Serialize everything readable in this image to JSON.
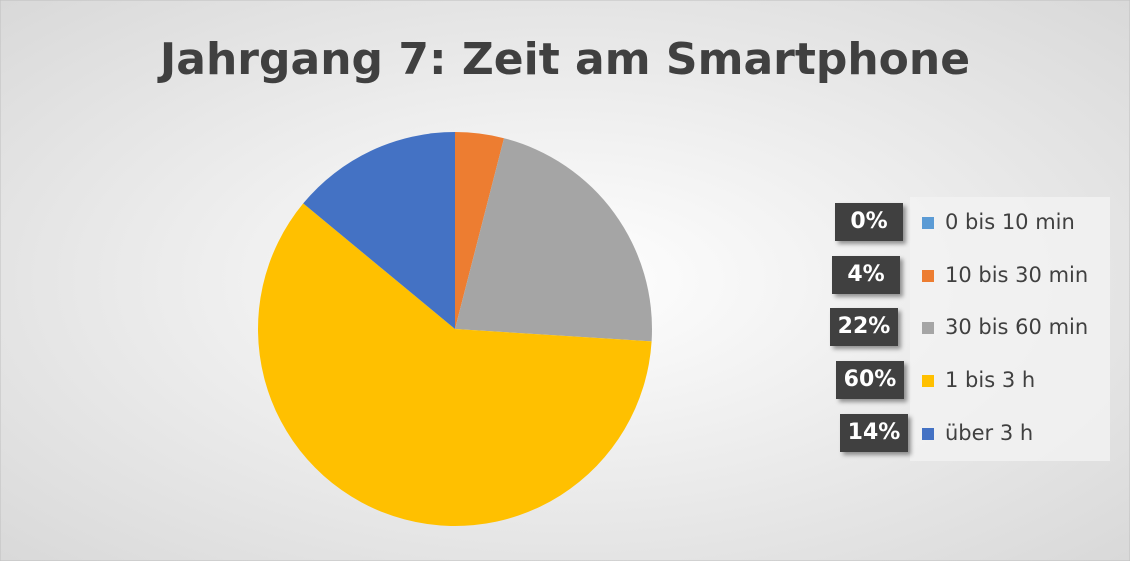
{
  "chart_data": {
    "type": "pie",
    "title": "Jahrgang 7: Zeit am Smartphone",
    "categories": [
      "0 bis 10 min",
      "10 bis 30 min",
      "30 bis 60 min",
      "1 bis 3 h",
      "über 3 h"
    ],
    "values": [
      0,
      4,
      22,
      60,
      14
    ],
    "value_labels": [
      "0%",
      "4%",
      "22%",
      "60%",
      "14%"
    ],
    "colors": [
      "#5b9bd5",
      "#ed7d31",
      "#a5a5a5",
      "#ffc000",
      "#4472c4"
    ],
    "legend": "right"
  }
}
